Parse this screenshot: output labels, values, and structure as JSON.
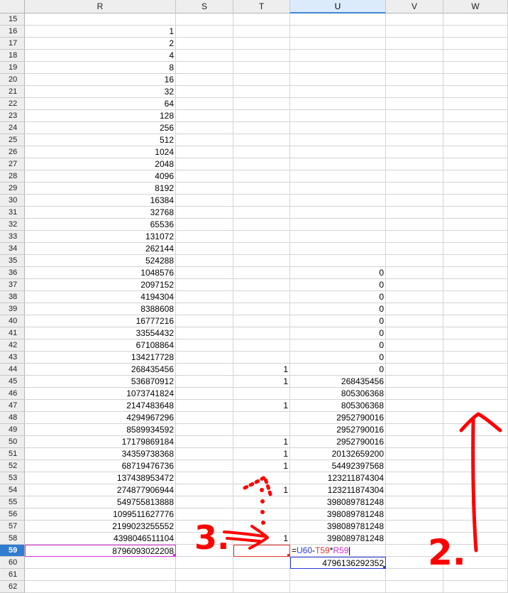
{
  "spreadsheet": {
    "columns": [
      "R",
      "S",
      "T",
      "U",
      "V",
      "W"
    ],
    "selected_column": "U",
    "active_row": 59,
    "rows": [
      {
        "n": "15",
        "R": "",
        "T": "",
        "U": ""
      },
      {
        "n": "16",
        "R": "1",
        "T": "",
        "U": ""
      },
      {
        "n": "17",
        "R": "2",
        "T": "",
        "U": ""
      },
      {
        "n": "18",
        "R": "4",
        "T": "",
        "U": ""
      },
      {
        "n": "19",
        "R": "8",
        "T": "",
        "U": ""
      },
      {
        "n": "20",
        "R": "16",
        "T": "",
        "U": ""
      },
      {
        "n": "21",
        "R": "32",
        "T": "",
        "U": ""
      },
      {
        "n": "22",
        "R": "64",
        "T": "",
        "U": ""
      },
      {
        "n": "23",
        "R": "128",
        "T": "",
        "U": ""
      },
      {
        "n": "24",
        "R": "256",
        "T": "",
        "U": ""
      },
      {
        "n": "25",
        "R": "512",
        "T": "",
        "U": ""
      },
      {
        "n": "26",
        "R": "1024",
        "T": "",
        "U": ""
      },
      {
        "n": "27",
        "R": "2048",
        "T": "",
        "U": ""
      },
      {
        "n": "28",
        "R": "4096",
        "T": "",
        "U": ""
      },
      {
        "n": "29",
        "R": "8192",
        "T": "",
        "U": ""
      },
      {
        "n": "30",
        "R": "16384",
        "T": "",
        "U": ""
      },
      {
        "n": "31",
        "R": "32768",
        "T": "",
        "U": ""
      },
      {
        "n": "32",
        "R": "65536",
        "T": "",
        "U": ""
      },
      {
        "n": "33",
        "R": "131072",
        "T": "",
        "U": ""
      },
      {
        "n": "34",
        "R": "262144",
        "T": "",
        "U": ""
      },
      {
        "n": "35",
        "R": "524288",
        "T": "",
        "U": ""
      },
      {
        "n": "36",
        "R": "1048576",
        "T": "",
        "U": "0"
      },
      {
        "n": "37",
        "R": "2097152",
        "T": "",
        "U": "0"
      },
      {
        "n": "38",
        "R": "4194304",
        "T": "",
        "U": "0"
      },
      {
        "n": "39",
        "R": "8388608",
        "T": "",
        "U": "0"
      },
      {
        "n": "40",
        "R": "16777216",
        "T": "",
        "U": "0"
      },
      {
        "n": "41",
        "R": "33554432",
        "T": "",
        "U": "0"
      },
      {
        "n": "42",
        "R": "67108864",
        "T": "",
        "U": "0"
      },
      {
        "n": "43",
        "R": "134217728",
        "T": "",
        "U": "0"
      },
      {
        "n": "44",
        "R": "268435456",
        "T": "1",
        "U": "0"
      },
      {
        "n": "45",
        "R": "536870912",
        "T": "1",
        "U": "268435456"
      },
      {
        "n": "46",
        "R": "1073741824",
        "T": "",
        "U": "805306368"
      },
      {
        "n": "47",
        "R": "2147483648",
        "T": "1",
        "U": "805306368"
      },
      {
        "n": "48",
        "R": "4294967296",
        "T": "",
        "U": "2952790016"
      },
      {
        "n": "49",
        "R": "8589934592",
        "T": "",
        "U": "2952790016"
      },
      {
        "n": "50",
        "R": "17179869184",
        "T": "1",
        "U": "2952790016"
      },
      {
        "n": "51",
        "R": "34359738368",
        "T": "1",
        "U": "20132659200"
      },
      {
        "n": "52",
        "R": "68719476736",
        "T": "1",
        "U": "54492397568"
      },
      {
        "n": "53",
        "R": "137438953472",
        "T": "",
        "U": "123211874304"
      },
      {
        "n": "54",
        "R": "274877906944",
        "T": "1",
        "U": "123211874304"
      },
      {
        "n": "55",
        "R": "549755813888",
        "T": "",
        "U": "398089781248"
      },
      {
        "n": "56",
        "R": "1099511627776",
        "T": "",
        "U": "398089781248"
      },
      {
        "n": "57",
        "R": "2199023255552",
        "T": "",
        "U": "398089781248"
      },
      {
        "n": "58",
        "R": "4398046511104",
        "T": "1",
        "U": "398089781248"
      },
      {
        "n": "59",
        "R": "8796093022208",
        "T": "",
        "U": ""
      },
      {
        "n": "60",
        "R": "",
        "T": "",
        "U": "4796136292352"
      },
      {
        "n": "61",
        "R": "",
        "T": "",
        "U": ""
      },
      {
        "n": "62",
        "R": "",
        "T": "",
        "U": ""
      }
    ],
    "formula": {
      "eq": "=",
      "ref1": "U60",
      "op1": "-",
      "ref2": "T59",
      "op2": "*",
      "ref3": "R59"
    }
  },
  "annotations": {
    "label_2": "2.",
    "label_3": "3.",
    "ink_color": "#ff0000"
  },
  "colors": {
    "ref_u": "#2d3bd6",
    "ref_t": "#e23131",
    "ref_r": "#d62ad6",
    "header_select": "#2f7cd1"
  }
}
